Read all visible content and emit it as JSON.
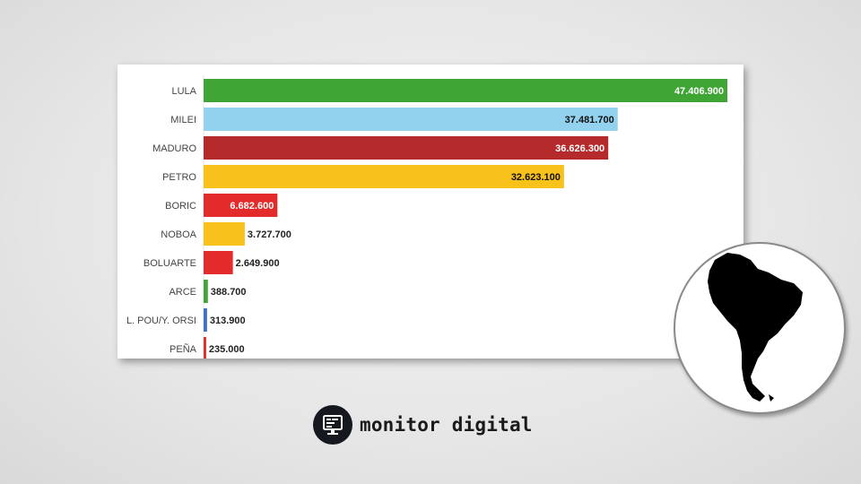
{
  "chart_data": {
    "type": "bar",
    "orientation": "horizontal",
    "categories": [
      "LULA",
      "MILEI",
      "MADURO",
      "PETRO",
      "BORIC",
      "NOBOA",
      "BOLUARTE",
      "ARCE",
      "L. POU/Y. ORSI",
      "PEÑA"
    ],
    "values": [
      47406900,
      37481700,
      36626300,
      32623100,
      6682600,
      3727700,
      2649900,
      388700,
      313900,
      235000
    ],
    "value_labels": [
      "47.406.900",
      "37.481.700",
      "36.626.300",
      "32.623.100",
      "6.682.600",
      "3.727.700",
      "2.649.900",
      "388.700",
      "313.900",
      "235.000"
    ],
    "colors": [
      "#3fa535",
      "#93d2ee",
      "#b52a2b",
      "#f8c21a",
      "#e32b2b",
      "#f8c21a",
      "#e32b2b",
      "#3fa535",
      "#3c6fcf",
      "#e32b2b"
    ],
    "label_inside": [
      true,
      true,
      true,
      true,
      true,
      false,
      false,
      false,
      false,
      false
    ],
    "label_colors": [
      "#ffffff",
      "#111111",
      "#ffffff",
      "#111111",
      "#ffffff",
      "#222222",
      "#222222",
      "#222222",
      "#222222",
      "#222222"
    ],
    "xlim": [
      0,
      47406900
    ],
    "title": "",
    "xlabel": "",
    "ylabel": "",
    "grid": false,
    "legend": "none"
  },
  "decoration": {
    "map_icon": "south-america-map-icon"
  },
  "brand": {
    "name": "monitor digital",
    "logo_icon": "monitor-icon"
  }
}
